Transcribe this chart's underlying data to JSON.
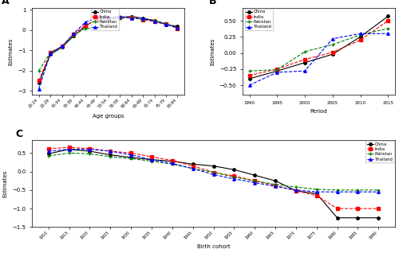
{
  "age_groups": [
    "20-24",
    "25-29",
    "30-34",
    "35-39",
    "40-44",
    "45-49",
    "50-54",
    "55-59",
    "60-64",
    "65-69",
    "70-74",
    "75-79",
    "80-84"
  ],
  "age_china": [
    -2.6,
    -1.2,
    -0.85,
    -0.3,
    0.18,
    0.55,
    0.58,
    0.62,
    0.68,
    0.58,
    0.48,
    0.28,
    0.18
  ],
  "age_india": [
    -2.5,
    -1.1,
    -0.8,
    -0.2,
    0.22,
    0.52,
    0.58,
    0.62,
    0.62,
    0.52,
    0.42,
    0.32,
    0.08
  ],
  "age_pakistan": [
    -2.0,
    -1.1,
    -0.85,
    -0.25,
    0.08,
    0.12,
    0.52,
    0.58,
    0.62,
    0.52,
    0.48,
    0.32,
    0.08
  ],
  "age_thailand": [
    -2.9,
    -1.15,
    -0.8,
    -0.18,
    0.38,
    0.62,
    0.62,
    0.68,
    0.58,
    0.58,
    0.42,
    0.28,
    0.12
  ],
  "periods": [
    1990,
    1995,
    2000,
    2005,
    2010,
    2015
  ],
  "period_china": [
    -0.4,
    -0.28,
    -0.15,
    -0.02,
    0.25,
    0.57
  ],
  "period_india": [
    -0.35,
    -0.25,
    -0.1,
    0.01,
    0.2,
    0.5
  ],
  "period_pakistan": [
    -0.28,
    -0.26,
    0.02,
    0.13,
    0.28,
    0.38
  ],
  "period_thailand": [
    -0.5,
    -0.3,
    -0.28,
    0.22,
    0.3,
    0.3
  ],
  "cohorts": [
    "1910",
    "1915",
    "1920",
    "1925",
    "1930",
    "1935",
    "1940",
    "1945",
    "1950",
    "1955",
    "1960",
    "1965",
    "1970",
    "1975",
    "1980",
    "1985",
    "1990"
  ],
  "cohort_china": [
    0.48,
    0.6,
    0.55,
    0.45,
    0.38,
    0.32,
    0.28,
    0.2,
    0.15,
    0.05,
    -0.1,
    -0.25,
    -0.52,
    -0.6,
    -1.25,
    -1.25,
    -1.25
  ],
  "cohort_india": [
    0.62,
    0.65,
    0.62,
    0.55,
    0.5,
    0.4,
    0.3,
    0.15,
    -0.02,
    -0.12,
    -0.25,
    -0.38,
    -0.52,
    -0.65,
    -1.0,
    -1.0,
    -1.0
  ],
  "cohort_pakistan": [
    0.42,
    0.5,
    0.48,
    0.4,
    0.35,
    0.28,
    0.2,
    0.08,
    -0.02,
    -0.15,
    -0.25,
    -0.35,
    -0.42,
    -0.48,
    -0.5,
    -0.5,
    -0.5
  ],
  "cohort_thailand": [
    0.55,
    0.6,
    0.6,
    0.55,
    0.45,
    0.32,
    0.22,
    0.08,
    -0.08,
    -0.2,
    -0.3,
    -0.4,
    -0.5,
    -0.55,
    -0.55,
    -0.55,
    -0.55
  ],
  "colors": {
    "china": "black",
    "india": "red",
    "pakistan": "green",
    "thailand": "blue"
  },
  "markers": {
    "china": "o",
    "india": "s",
    "pakistan": "+",
    "thailand": "^"
  },
  "linestyles": {
    "china": "-",
    "india": "--",
    "pakistan": "--",
    "thailand": "--"
  },
  "labels": {
    "china": "China",
    "india": "India",
    "pakistan": "Pakistan",
    "thailand": "Thailand"
  }
}
